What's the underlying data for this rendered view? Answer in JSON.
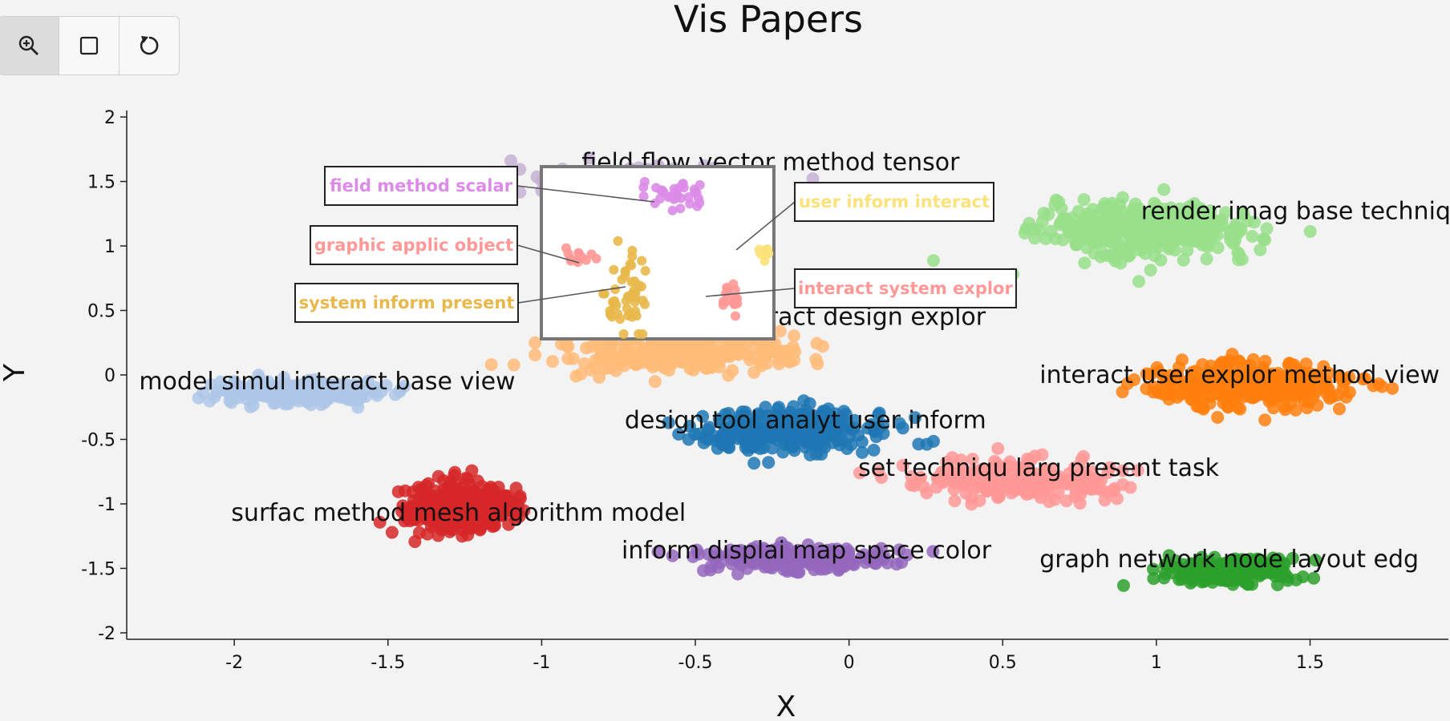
{
  "toolbar": {
    "buttons": [
      {
        "name": "zoom-in-icon",
        "active": true
      },
      {
        "name": "select-box-icon",
        "active": false
      },
      {
        "name": "reset-icon",
        "active": false
      }
    ]
  },
  "chart_data": {
    "type": "scatter",
    "title": "Vis Papers",
    "xlabel": "X",
    "ylabel": "Y",
    "xlim": [
      -2.35,
      1.95
    ],
    "ylim": [
      -2.05,
      2.05
    ],
    "xticks": [
      -2,
      -1.5,
      -1,
      -0.5,
      0,
      0.5,
      1,
      1.5
    ],
    "yticks": [
      -2,
      -1.5,
      -1,
      -0.5,
      0,
      0.5,
      1,
      1.5,
      2
    ],
    "grid": false,
    "clusters": [
      {
        "label": "field flow vector method tensor",
        "color": "#c5b0d5",
        "center": [
          -0.76,
          1.5
        ],
        "spread": [
          0.33,
          0.11
        ],
        "count": 170,
        "label_at": [
          -0.87,
          1.65
        ]
      },
      {
        "label": "render imag base techniqu",
        "color": "#98df8a",
        "center": [
          0.98,
          1.13
        ],
        "spread": [
          0.33,
          0.2
        ],
        "count": 420,
        "label_at": [
          0.95,
          1.27
        ]
      },
      {
        "label": "model simul interact base view",
        "color": "#aec7e8",
        "center": [
          -1.8,
          -0.13
        ],
        "spread": [
          0.26,
          0.09
        ],
        "count": 220,
        "label_at": [
          -2.31,
          -0.05
        ]
      },
      {
        "label": "system inform interact design explor",
        "color": "#ffbb78",
        "center": [
          -0.55,
          0.17
        ],
        "spread": [
          0.42,
          0.16
        ],
        "count": 260,
        "label_at": [
          -1.0,
          0.45
        ]
      },
      {
        "label": "interact user explor method view",
        "color": "#ff7f0e",
        "center": [
          1.3,
          -0.08
        ],
        "spread": [
          0.32,
          0.17
        ],
        "count": 360,
        "label_at": [
          0.62,
          0.0
        ]
      },
      {
        "label": "design tool analyt user inform",
        "color": "#1f77b4",
        "center": [
          -0.18,
          -0.43
        ],
        "spread": [
          0.31,
          0.17
        ],
        "count": 290,
        "label_at": [
          -0.73,
          -0.35
        ]
      },
      {
        "label": "set techniqu larg present task",
        "color": "#ff9896",
        "center": [
          0.56,
          -0.82
        ],
        "spread": [
          0.33,
          0.15
        ],
        "count": 220,
        "label_at": [
          0.03,
          -0.72
        ]
      },
      {
        "label": "surfac method mesh algorithm model",
        "color": "#d62728",
        "center": [
          -1.28,
          -1.03
        ],
        "spread": [
          0.18,
          0.2
        ],
        "count": 300,
        "label_at": [
          -2.01,
          -1.07
        ]
      },
      {
        "label": "inform displai map space color",
        "color": "#9467bd",
        "center": [
          -0.18,
          -1.43
        ],
        "spread": [
          0.3,
          0.1
        ],
        "count": 230,
        "label_at": [
          -0.74,
          -1.36
        ]
      },
      {
        "label": "graph network node layout edg",
        "color": "#2ca02c",
        "center": [
          1.22,
          -1.52
        ],
        "spread": [
          0.22,
          0.12
        ],
        "count": 170,
        "label_at": [
          0.62,
          -1.43
        ]
      }
    ],
    "inset": {
      "x_range": [
        -1.0,
        -0.25
      ],
      "y_range": [
        0.25,
        1.58
      ],
      "callouts": [
        {
          "label": "field method scalar",
          "color": "#dc8ce8"
        },
        {
          "label": "graphic applic object",
          "color": "#ff9896"
        },
        {
          "label": "system inform present",
          "color": "#e8b84a"
        },
        {
          "label": "user inform interact",
          "color": "#fbe27a"
        },
        {
          "label": "interact system explor",
          "color": "#ff9896"
        }
      ]
    }
  }
}
